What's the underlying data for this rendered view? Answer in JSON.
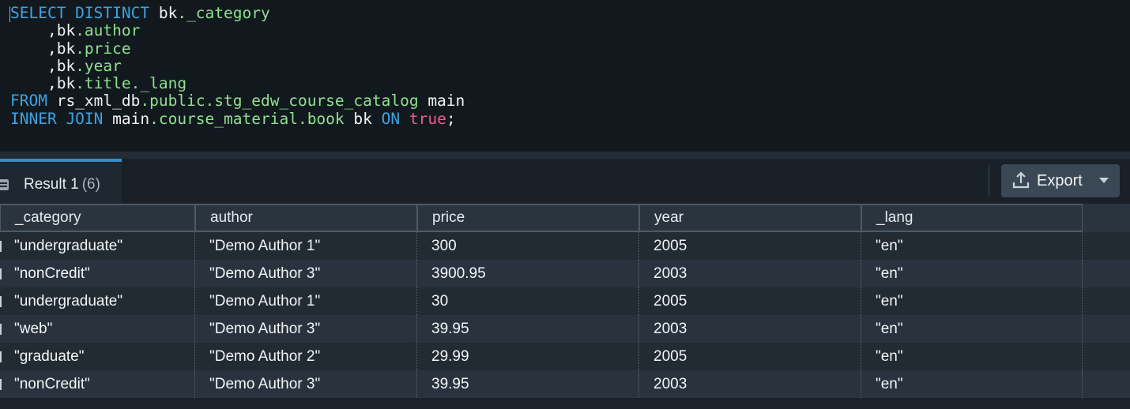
{
  "editor": {
    "lines": [
      [
        {
          "t": "SELECT DISTINCT ",
          "c": "kw"
        },
        {
          "t": "bk",
          "c": "pl"
        },
        {
          "t": "._category",
          "c": "id"
        }
      ],
      [
        {
          "t": "    ,bk",
          "c": "pl"
        },
        {
          "t": ".author",
          "c": "id"
        }
      ],
      [
        {
          "t": "    ,bk",
          "c": "pl"
        },
        {
          "t": ".price",
          "c": "id"
        }
      ],
      [
        {
          "t": "    ,bk",
          "c": "pl"
        },
        {
          "t": ".year",
          "c": "id"
        }
      ],
      [
        {
          "t": "    ,bk",
          "c": "pl"
        },
        {
          "t": ".title._lang",
          "c": "id"
        }
      ],
      [
        {
          "t": "FROM ",
          "c": "kw"
        },
        {
          "t": "rs_xml_db",
          "c": "pl"
        },
        {
          "t": ".public.stg_edw_course_catalog",
          "c": "id"
        },
        {
          "t": " main",
          "c": "pl"
        }
      ],
      [
        {
          "t": "INNER JOIN ",
          "c": "kw"
        },
        {
          "t": "main",
          "c": "pl"
        },
        {
          "t": ".course_material.book",
          "c": "id"
        },
        {
          "t": " bk ",
          "c": "pl"
        },
        {
          "t": "ON ",
          "c": "kw"
        },
        {
          "t": "true",
          "c": "bool"
        },
        {
          "t": ";",
          "c": "pl"
        }
      ]
    ]
  },
  "results": {
    "tab_label": "Result 1",
    "tab_count": "(6)",
    "export_label": "Export",
    "columns": [
      "_category",
      "author",
      "price",
      "year",
      "_lang"
    ],
    "rows": [
      [
        "\"undergraduate\"",
        "\"Demo Author 1\"",
        "300",
        "2005",
        "\"en\""
      ],
      [
        "\"nonCredit\"",
        "\"Demo Author 3\"",
        "3900.95",
        "2003",
        "\"en\""
      ],
      [
        "\"undergraduate\"",
        "\"Demo Author 1\"",
        "30",
        "2005",
        "\"en\""
      ],
      [
        "\"web\"",
        "\"Demo Author 3\"",
        "39.95",
        "2003",
        "\"en\""
      ],
      [
        "\"graduate\"",
        "\"Demo Author 2\"",
        "29.99",
        "2005",
        "\"en\""
      ],
      [
        "\"nonCredit\"",
        "\"Demo Author 3\"",
        "39.95",
        "2003",
        "\"en\""
      ]
    ]
  },
  "colors": {
    "accent": "#2d8fd5",
    "keyword": "#3ea2e4",
    "identifier": "#8fe08f",
    "boolean": "#ec5c8c"
  }
}
